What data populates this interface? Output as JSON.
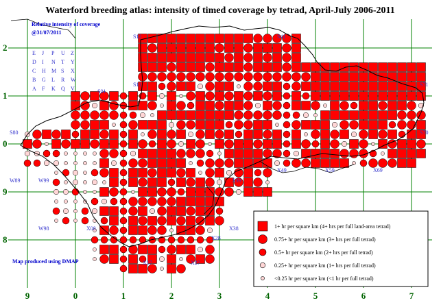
{
  "map": {
    "title": "Waterford breeding atlas: intensity of timed coverage by tetrad, April-July 2006-2011",
    "subtitle_line1": "Relative intensity of coverage",
    "subtitle_line2": "@31/07/2011",
    "credit": "Map produced using DMAP",
    "colors": {
      "fill": "#ff0000",
      "grid": "#008000",
      "outline": "#000000",
      "label_blue": "#3333cc",
      "axis_green": "#006400"
    },
    "tetrad_letters": [
      [
        "E",
        "J",
        "P",
        "U",
        "Z"
      ],
      [
        "D",
        "I",
        "N",
        "T",
        "Y"
      ],
      [
        "C",
        "H",
        "M",
        "S",
        "X"
      ],
      [
        "B",
        "G",
        "L",
        "R",
        "W"
      ],
      [
        "A",
        "F",
        "K",
        "Q",
        "V"
      ]
    ],
    "bottom_axis": [
      "9",
      "0",
      "1",
      "2",
      "3",
      "4",
      "5",
      "6",
      "7"
    ],
    "left_axis": [
      "2",
      "1",
      "0",
      "9",
      "8"
    ],
    "hectad_labels": [
      "S12",
      "S11",
      "S01",
      "S71",
      "S70",
      "S80",
      "W89",
      "W99",
      "W98",
      "X08",
      "X39",
      "X49",
      "X59",
      "X69",
      "X38",
      "X28",
      "X17",
      "X27",
      "S41"
    ],
    "legend": {
      "items": [
        {
          "symbol": "square",
          "label": "1+ hr per square km (4+ hrs per full land-area tetrad)"
        },
        {
          "symbol": "circle-large",
          "label": "0.75+ hr per square km (3+ hrs per full  tetrad)"
        },
        {
          "symbol": "circle-medium",
          "label": "0.5+ hr per square km (2+ hrs per full tetrad)"
        },
        {
          "symbol": "circle-small",
          "label": "0.25+ hr per square km (1+ hrs per full tetrad)"
        },
        {
          "symbol": "circle-tiny",
          "label": "<0.25 hr per square km (<1 hr per full tetrad)"
        }
      ]
    }
  }
}
